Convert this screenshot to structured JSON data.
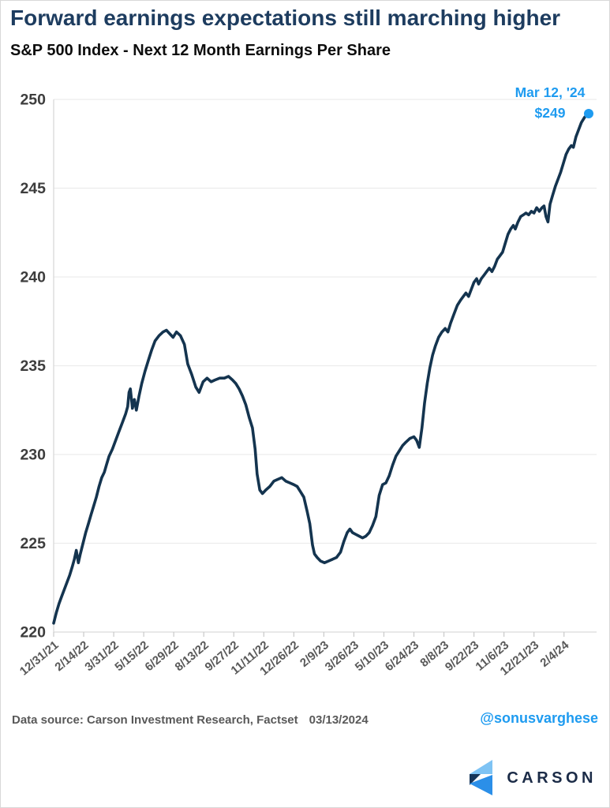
{
  "header": {
    "title": "Forward earnings expectations still marching higher",
    "subtitle": "S&P 500 Index - Next 12 Month Earnings Per Share"
  },
  "footer": {
    "source": "Data source: Carson Investment Research, Factset",
    "date": "03/13/2024",
    "handle": "@sonusvarghese"
  },
  "logo": {
    "text": "CARSON"
  },
  "colors": {
    "title": "#1d3c5f",
    "line": "#14344f",
    "accent_blue": "#1e9bf0",
    "grid": "#ececec",
    "axis": "#d9d9d9",
    "tick": "#c9c9c9",
    "y_label": "#3d3d3d",
    "x_label": "#595959",
    "logo_light": "#7ec3f4",
    "logo_mid": "#2b8fe8",
    "logo_dark": "#16355a"
  },
  "chart_data": {
    "type": "line",
    "title": "S&P 500 Index - Next 12 Month Earnings Per Share",
    "xlabel": "",
    "ylabel": "",
    "ylim": [
      220,
      250
    ],
    "yticks": [
      220,
      225,
      230,
      235,
      240,
      245,
      250
    ],
    "grid": "horizontal",
    "legend": "none",
    "x_unit": "days since 12/31/21",
    "x_max": 802,
    "xticks": [
      {
        "day": 0,
        "label": "12/31/21"
      },
      {
        "day": 45,
        "label": "2/14/22"
      },
      {
        "day": 90,
        "label": "3/31/22"
      },
      {
        "day": 135,
        "label": "5/15/22"
      },
      {
        "day": 180,
        "label": "6/29/22"
      },
      {
        "day": 225,
        "label": "8/13/22"
      },
      {
        "day": 270,
        "label": "9/27/22"
      },
      {
        "day": 315,
        "label": "11/11/22"
      },
      {
        "day": 360,
        "label": "12/26/22"
      },
      {
        "day": 405,
        "label": "2/9/23"
      },
      {
        "day": 450,
        "label": "3/26/23"
      },
      {
        "day": 495,
        "label": "5/10/23"
      },
      {
        "day": 540,
        "label": "6/24/23"
      },
      {
        "day": 585,
        "label": "8/8/23"
      },
      {
        "day": 630,
        "label": "9/22/23"
      },
      {
        "day": 675,
        "label": "11/6/23"
      },
      {
        "day": 720,
        "label": "12/21/23"
      },
      {
        "day": 765,
        "label": "2/4/24"
      }
    ],
    "annotation": {
      "line1": "Mar 12, '24",
      "line2": "$249"
    },
    "end_point": {
      "date": "Mar 12, '24",
      "value": 249.2
    },
    "series": [
      {
        "name": "Next 12 Month EPS",
        "points": [
          [
            0,
            220.5
          ],
          [
            4,
            221.1
          ],
          [
            8,
            221.6
          ],
          [
            12,
            222.0
          ],
          [
            16,
            222.4
          ],
          [
            20,
            222.8
          ],
          [
            24,
            223.2
          ],
          [
            28,
            223.7
          ],
          [
            31,
            224.1
          ],
          [
            34,
            224.6
          ],
          [
            37,
            223.9
          ],
          [
            40,
            224.4
          ],
          [
            44,
            225.0
          ],
          [
            48,
            225.6
          ],
          [
            52,
            226.1
          ],
          [
            56,
            226.6
          ],
          [
            60,
            227.1
          ],
          [
            64,
            227.6
          ],
          [
            68,
            228.2
          ],
          [
            72,
            228.7
          ],
          [
            76,
            229.0
          ],
          [
            79,
            229.4
          ],
          [
            83,
            229.9
          ],
          [
            88,
            230.3
          ],
          [
            93,
            230.8
          ],
          [
            98,
            231.3
          ],
          [
            103,
            231.8
          ],
          [
            108,
            232.3
          ],
          [
            111,
            232.7
          ],
          [
            113,
            233.5
          ],
          [
            115,
            233.7
          ],
          [
            118,
            232.6
          ],
          [
            121,
            233.1
          ],
          [
            124,
            232.5
          ],
          [
            128,
            233.3
          ],
          [
            132,
            234.0
          ],
          [
            137,
            234.7
          ],
          [
            142,
            235.3
          ],
          [
            147,
            235.9
          ],
          [
            152,
            236.4
          ],
          [
            158,
            236.7
          ],
          [
            164,
            236.9
          ],
          [
            169,
            237.0
          ],
          [
            174,
            236.8
          ],
          [
            179,
            236.6
          ],
          [
            184,
            236.9
          ],
          [
            190,
            236.7
          ],
          [
            196,
            236.2
          ],
          [
            201,
            235.1
          ],
          [
            207,
            234.5
          ],
          [
            213,
            233.8
          ],
          [
            218,
            233.5
          ],
          [
            224,
            234.1
          ],
          [
            230,
            234.3
          ],
          [
            236,
            234.1
          ],
          [
            242,
            234.2
          ],
          [
            249,
            234.3
          ],
          [
            256,
            234.3
          ],
          [
            262,
            234.4
          ],
          [
            268,
            234.2
          ],
          [
            273,
            234.0
          ],
          [
            278,
            233.7
          ],
          [
            283,
            233.3
          ],
          [
            288,
            232.8
          ],
          [
            293,
            232.1
          ],
          [
            298,
            231.5
          ],
          [
            302,
            230.3
          ],
          [
            305,
            228.9
          ],
          [
            309,
            228.0
          ],
          [
            313,
            227.8
          ],
          [
            318,
            228.0
          ],
          [
            324,
            228.2
          ],
          [
            330,
            228.5
          ],
          [
            336,
            228.6
          ],
          [
            342,
            228.7
          ],
          [
            348,
            228.5
          ],
          [
            354,
            228.4
          ],
          [
            360,
            228.3
          ],
          [
            365,
            228.2
          ],
          [
            370,
            227.9
          ],
          [
            375,
            227.6
          ],
          [
            380,
            226.8
          ],
          [
            384,
            226.1
          ],
          [
            388,
            224.9
          ],
          [
            391,
            224.4
          ],
          [
            395,
            224.2
          ],
          [
            400,
            224.0
          ],
          [
            406,
            223.9
          ],
          [
            412,
            224.0
          ],
          [
            418,
            224.1
          ],
          [
            424,
            224.2
          ],
          [
            430,
            224.5
          ],
          [
            435,
            225.1
          ],
          [
            440,
            225.6
          ],
          [
            444,
            225.8
          ],
          [
            448,
            225.6
          ],
          [
            453,
            225.5
          ],
          [
            458,
            225.4
          ],
          [
            463,
            225.3
          ],
          [
            468,
            225.4
          ],
          [
            473,
            225.6
          ],
          [
            478,
            226.0
          ],
          [
            483,
            226.5
          ],
          [
            488,
            227.7
          ],
          [
            493,
            228.3
          ],
          [
            498,
            228.4
          ],
          [
            503,
            228.8
          ],
          [
            508,
            229.4
          ],
          [
            513,
            229.9
          ],
          [
            518,
            230.2
          ],
          [
            523,
            230.5
          ],
          [
            528,
            230.7
          ],
          [
            534,
            230.9
          ],
          [
            540,
            231.0
          ],
          [
            544,
            230.8
          ],
          [
            548,
            230.4
          ],
          [
            552,
            231.5
          ],
          [
            556,
            232.9
          ],
          [
            560,
            234.0
          ],
          [
            564,
            234.9
          ],
          [
            568,
            235.6
          ],
          [
            572,
            236.1
          ],
          [
            577,
            236.6
          ],
          [
            582,
            236.9
          ],
          [
            587,
            237.1
          ],
          [
            591,
            236.9
          ],
          [
            595,
            237.4
          ],
          [
            600,
            237.9
          ],
          [
            605,
            238.4
          ],
          [
            610,
            238.7
          ],
          [
            614,
            238.9
          ],
          [
            618,
            239.1
          ],
          [
            622,
            238.9
          ],
          [
            626,
            239.3
          ],
          [
            630,
            239.7
          ],
          [
            634,
            239.9
          ],
          [
            637,
            239.6
          ],
          [
            641,
            239.9
          ],
          [
            645,
            240.1
          ],
          [
            649,
            240.3
          ],
          [
            653,
            240.5
          ],
          [
            657,
            240.3
          ],
          [
            661,
            240.6
          ],
          [
            665,
            241.0
          ],
          [
            669,
            241.2
          ],
          [
            673,
            241.4
          ],
          [
            677,
            241.9
          ],
          [
            681,
            242.4
          ],
          [
            685,
            242.7
          ],
          [
            689,
            242.9
          ],
          [
            692,
            242.7
          ],
          [
            696,
            243.1
          ],
          [
            700,
            243.4
          ],
          [
            704,
            243.5
          ],
          [
            708,
            243.6
          ],
          [
            712,
            243.5
          ],
          [
            716,
            243.7
          ],
          [
            720,
            243.6
          ],
          [
            724,
            243.9
          ],
          [
            728,
            243.7
          ],
          [
            732,
            243.9
          ],
          [
            735,
            244.0
          ],
          [
            738,
            243.4
          ],
          [
            741,
            243.1
          ],
          [
            744,
            244.1
          ],
          [
            748,
            244.6
          ],
          [
            752,
            245.1
          ],
          [
            756,
            245.5
          ],
          [
            760,
            245.9
          ],
          [
            764,
            246.4
          ],
          [
            768,
            246.9
          ],
          [
            772,
            247.2
          ],
          [
            776,
            247.4
          ],
          [
            779,
            247.3
          ],
          [
            783,
            247.9
          ],
          [
            787,
            248.3
          ],
          [
            791,
            248.7
          ],
          [
            796,
            249.0
          ],
          [
            802,
            249.2
          ]
        ]
      }
    ]
  }
}
